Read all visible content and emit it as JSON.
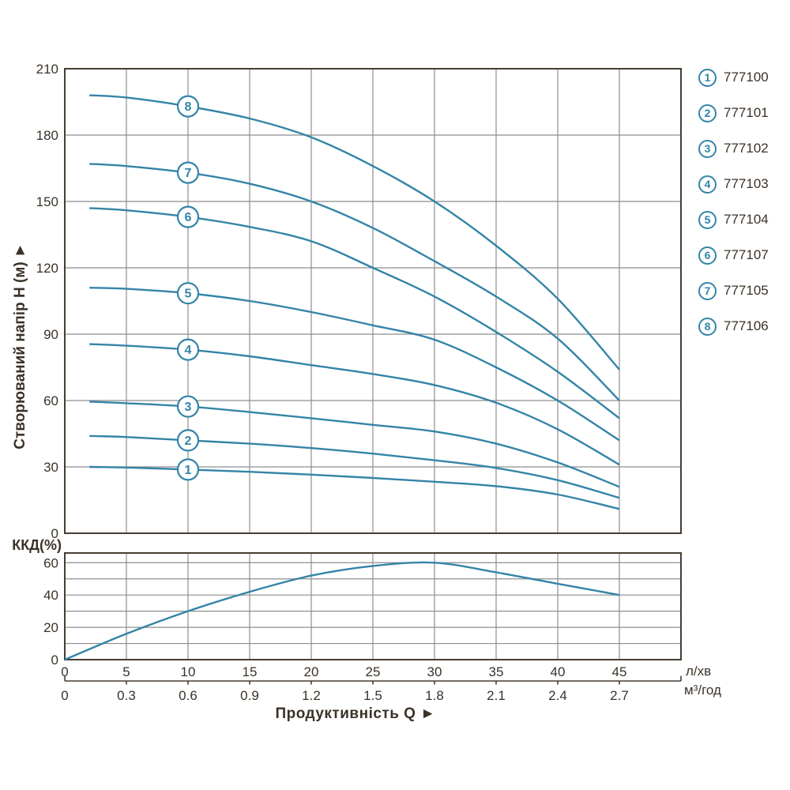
{
  "colors": {
    "curve": "#3484a7",
    "grid": "#8e8e8e",
    "axis": "#463d32",
    "text": "#3b3227"
  },
  "labels": {
    "y_axis_title": "Створюваний напір H (м) ►",
    "x_axis_title": "Продуктивність Q ►",
    "efficiency_label": "ККД(%)",
    "flow_unit_lmin": "л/хв",
    "flow_unit_m3h": "м³/год"
  },
  "axis": {
    "x_primary": {
      "unit": "л/хв",
      "ticks": [
        0,
        5,
        10,
        15,
        20,
        25,
        30,
        35,
        40,
        45
      ]
    },
    "x_secondary": {
      "unit": "м³/год",
      "ticks": [
        "0",
        "0.3",
        "0.6",
        "0.9",
        "1.2",
        "1.5",
        "1.8",
        "2.1",
        "2.4",
        "2.7"
      ]
    },
    "y_main": {
      "ticks": [
        0,
        30,
        60,
        90,
        120,
        150,
        180,
        210
      ]
    },
    "y_efficiency": {
      "ticks": [
        0,
        20,
        40,
        60
      ]
    }
  },
  "chart_data": [
    {
      "type": "line",
      "title": "",
      "xlabel": "Продуктивність Q",
      "ylabel": "Створюваний напір H (м)",
      "xlim": [
        0,
        50
      ],
      "ylim": [
        0,
        210
      ],
      "x_tick_step": 5,
      "y_tick_step": 30,
      "grid": true,
      "legend_position": "right-outside",
      "x": [
        2,
        5,
        10,
        15,
        20,
        25,
        30,
        35,
        40,
        45
      ],
      "series": [
        {
          "label": "1",
          "name": "777100",
          "values": [
            30,
            29.7,
            28.8,
            27.8,
            26.5,
            25,
            23.3,
            21.3,
            17.5,
            11
          ]
        },
        {
          "label": "2",
          "name": "777101",
          "values": [
            44,
            43.5,
            42,
            40.5,
            38.5,
            36,
            33,
            29.5,
            24,
            16
          ]
        },
        {
          "label": "3",
          "name": "777102",
          "values": [
            59.5,
            58.8,
            57.3,
            54.8,
            52,
            49,
            46,
            40.5,
            32,
            21
          ]
        },
        {
          "label": "4",
          "name": "777103",
          "values": [
            85.5,
            84.8,
            83,
            80,
            76,
            72,
            67,
            59,
            47,
            31
          ]
        },
        {
          "label": "5",
          "name": "777104",
          "values": [
            111,
            110.5,
            108.5,
            105,
            100,
            94,
            87.5,
            75,
            60,
            42
          ]
        },
        {
          "label": "6",
          "name": "777107",
          "values": [
            147,
            146,
            143,
            138.5,
            132,
            120,
            107,
            91,
            73,
            52
          ]
        },
        {
          "label": "7",
          "name": "777105",
          "values": [
            167,
            166,
            163,
            158,
            150,
            138,
            123,
            107,
            88,
            60
          ]
        },
        {
          "label": "8",
          "name": "777106",
          "values": [
            198,
            197,
            193,
            187.5,
            179,
            166,
            150,
            130,
            106,
            74
          ]
        }
      ],
      "series_label_at_x": 10
    },
    {
      "type": "line",
      "title": "ККД(%)",
      "xlim": [
        0,
        50
      ],
      "ylim": [
        0,
        66
      ],
      "grid": true,
      "x": [
        0,
        5,
        10,
        15,
        20,
        25,
        30,
        35,
        40,
        45
      ],
      "values": [
        0,
        16,
        30,
        42,
        52,
        58,
        60,
        54,
        47,
        40
      ]
    }
  ],
  "legend": {
    "items": [
      {
        "num": "1",
        "code": "777100"
      },
      {
        "num": "2",
        "code": "777101"
      },
      {
        "num": "3",
        "code": "777102"
      },
      {
        "num": "4",
        "code": "777103"
      },
      {
        "num": "5",
        "code": "777104"
      },
      {
        "num": "6",
        "code": "777107"
      },
      {
        "num": "7",
        "code": "777105"
      },
      {
        "num": "8",
        "code": "777106"
      }
    ]
  }
}
